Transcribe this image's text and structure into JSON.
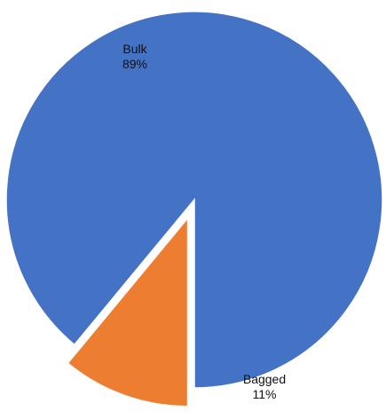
{
  "chart_data": {
    "type": "pie",
    "title": "",
    "slices": [
      {
        "name": "Bulk",
        "value": 89,
        "percent_label": "89%",
        "color": "#4472C4",
        "exploded": false
      },
      {
        "name": "Bagged",
        "value": 11,
        "percent_label": "11%",
        "color": "#ED7D31",
        "exploded": true
      }
    ],
    "legend": "none",
    "data_labels": "category and percentage"
  }
}
